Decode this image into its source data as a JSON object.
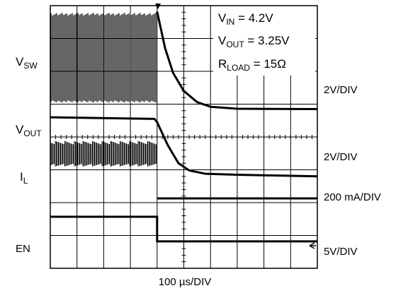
{
  "chart_data": {
    "type": "line",
    "title": "",
    "x_axis": {
      "label": "100 µs/DIV",
      "divisions": 10,
      "units_per_div": "100 µs",
      "range": [
        0,
        1000
      ]
    },
    "y_axis": {
      "divisions": 8
    },
    "grid": true,
    "trigger_marker_x": 400,
    "annotations": {
      "vin": {
        "prefix": "V",
        "sub": "IN",
        "value": " = 4.2V"
      },
      "vout": {
        "prefix": "V",
        "sub": "OUT",
        "value": " = 3.25V"
      },
      "rload": {
        "prefix": "R",
        "sub": "LOAD",
        "value": " = 15Ω"
      }
    },
    "channels": [
      {
        "key": "vsw",
        "label_prefix": "V",
        "label_sub": "SW",
        "scale": "2V/DIV",
        "baseline_div": 7.2,
        "description": "Switching node toggles between 0 V and VIN until EN falls, then decays exponentially to 0 V",
        "points_div": [
          [
            400,
            7.82
          ],
          [
            430,
            6.7
          ],
          [
            460,
            5.95
          ],
          [
            500,
            5.4
          ],
          [
            550,
            5.06
          ],
          [
            600,
            4.92
          ],
          [
            700,
            4.86
          ],
          [
            1000,
            4.85
          ]
        ]
      },
      {
        "key": "vout",
        "label_prefix": "V",
        "label_sub": "OUT",
        "scale": "2V/DIV",
        "points_div": [
          [
            0,
            4.6
          ],
          [
            390,
            4.55
          ],
          [
            400,
            4.45
          ],
          [
            440,
            3.75
          ],
          [
            480,
            3.2
          ],
          [
            520,
            2.98
          ],
          [
            580,
            2.88
          ],
          [
            700,
            2.85
          ],
          [
            1000,
            2.8
          ]
        ]
      },
      {
        "key": "il",
        "label_prefix": "I",
        "label_sub": "L",
        "scale": "200 mA/DIV",
        "ripple_band_div": [
          3.1,
          3.88
        ],
        "points_div": [
          [
            400,
            2.13
          ],
          [
            1000,
            2.13
          ]
        ]
      },
      {
        "key": "en",
        "label_prefix": "EN",
        "label_sub": "",
        "scale": "5V/DIV",
        "points_div": [
          [
            0,
            1.57
          ],
          [
            400,
            1.57
          ],
          [
            400,
            0.82
          ],
          [
            1000,
            0.82
          ]
        ]
      }
    ]
  }
}
